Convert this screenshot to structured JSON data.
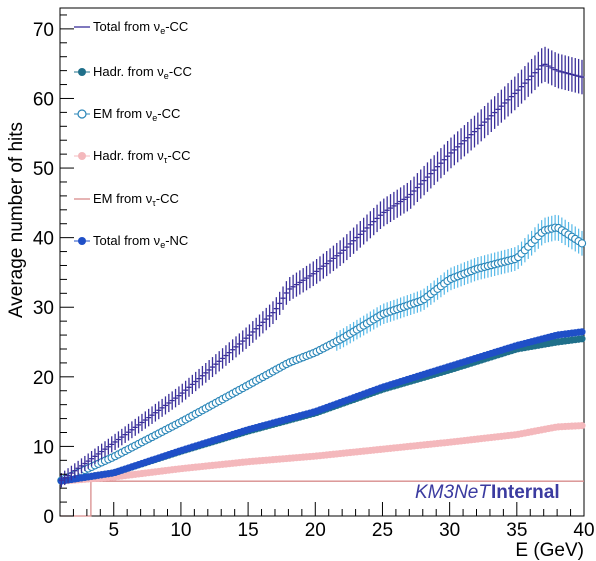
{
  "chart_data": {
    "type": "scatter",
    "title": "",
    "xlabel": "E (GeV)",
    "ylabel": "Average number of hits",
    "xlim": [
      1,
      40
    ],
    "ylim": [
      0,
      73
    ],
    "x_ticks": [
      5,
      10,
      15,
      20,
      25,
      30,
      35,
      40
    ],
    "y_ticks": [
      0,
      10,
      20,
      30,
      40,
      50,
      60,
      70
    ],
    "grid": false,
    "legend_position": "top-left",
    "watermark": {
      "part1": "KM3NeT",
      "part2": "Internal"
    },
    "series": [
      {
        "name_main": "Total from ν",
        "name_sub": "e",
        "name_tail": "-CC",
        "color": "#3a2f9a",
        "marker": "cross",
        "points": [
          [
            1,
            5
          ],
          [
            5,
            10.5
          ],
          [
            10,
            17.5
          ],
          [
            15,
            25.8
          ],
          [
            17,
            29.5
          ],
          [
            18,
            32.5
          ],
          [
            20,
            35
          ],
          [
            22,
            38
          ],
          [
            25,
            43.5
          ],
          [
            27,
            46
          ],
          [
            30,
            52
          ],
          [
            32,
            55.5
          ],
          [
            35,
            61
          ],
          [
            37,
            65
          ],
          [
            38,
            64
          ],
          [
            40,
            63
          ]
        ]
      },
      {
        "name_main": "Hadr. from ν",
        "name_sub": "e",
        "name_tail": "-CC",
        "color": "#1f6f8a",
        "marker": "filled-circle",
        "points": [
          [
            1,
            5
          ],
          [
            5,
            6.2
          ],
          [
            10,
            9.3
          ],
          [
            15,
            12.2
          ],
          [
            20,
            14.8
          ],
          [
            25,
            18.2
          ],
          [
            30,
            21
          ],
          [
            35,
            24
          ],
          [
            38,
            25
          ],
          [
            40,
            25.5
          ]
        ]
      },
      {
        "name_main": "EM from ν",
        "name_sub": "e",
        "name_tail": "-CC",
        "color": "#2a86b8",
        "marker": "open-circle",
        "points": [
          [
            1,
            5
          ],
          [
            5,
            8.5
          ],
          [
            10,
            13.5
          ],
          [
            15,
            18.8
          ],
          [
            18,
            22
          ],
          [
            20,
            23.5
          ],
          [
            22,
            25.5
          ],
          [
            25,
            29
          ],
          [
            28,
            31
          ],
          [
            30,
            34
          ],
          [
            32,
            35.5
          ],
          [
            35,
            37
          ],
          [
            37,
            41
          ],
          [
            38,
            41.5
          ],
          [
            40,
            39
          ]
        ]
      },
      {
        "name_main": "Hadr. from ν",
        "name_sub": "τ",
        "name_tail": "-CC",
        "color": "#f4b8bc",
        "marker": "filled-circle",
        "points": [
          [
            1,
            5
          ],
          [
            5,
            5.6
          ],
          [
            10,
            6.8
          ],
          [
            15,
            7.8
          ],
          [
            20,
            8.6
          ],
          [
            25,
            9.6
          ],
          [
            30,
            10.6
          ],
          [
            35,
            11.7
          ],
          [
            38,
            12.8
          ],
          [
            40,
            13
          ]
        ]
      },
      {
        "name_main": "EM from ν",
        "name_sub": "τ",
        "name_tail": "-CC",
        "color": "#d88c8c",
        "marker": "line",
        "points": [
          [
            1,
            0
          ],
          [
            3.3,
            0
          ],
          [
            3.3,
            5
          ],
          [
            40,
            5
          ]
        ]
      },
      {
        "name_main": "Total from ν",
        "name_sub": "e",
        "name_tail": "-NC",
        "color": "#1f4fc7",
        "marker": "filled-circle",
        "points": [
          [
            1,
            5
          ],
          [
            5,
            6.2
          ],
          [
            10,
            9.4
          ],
          [
            15,
            12.4
          ],
          [
            20,
            15
          ],
          [
            25,
            18.5
          ],
          [
            30,
            21.5
          ],
          [
            35,
            24.5
          ],
          [
            38,
            26
          ],
          [
            40,
            26.5
          ]
        ]
      }
    ]
  }
}
